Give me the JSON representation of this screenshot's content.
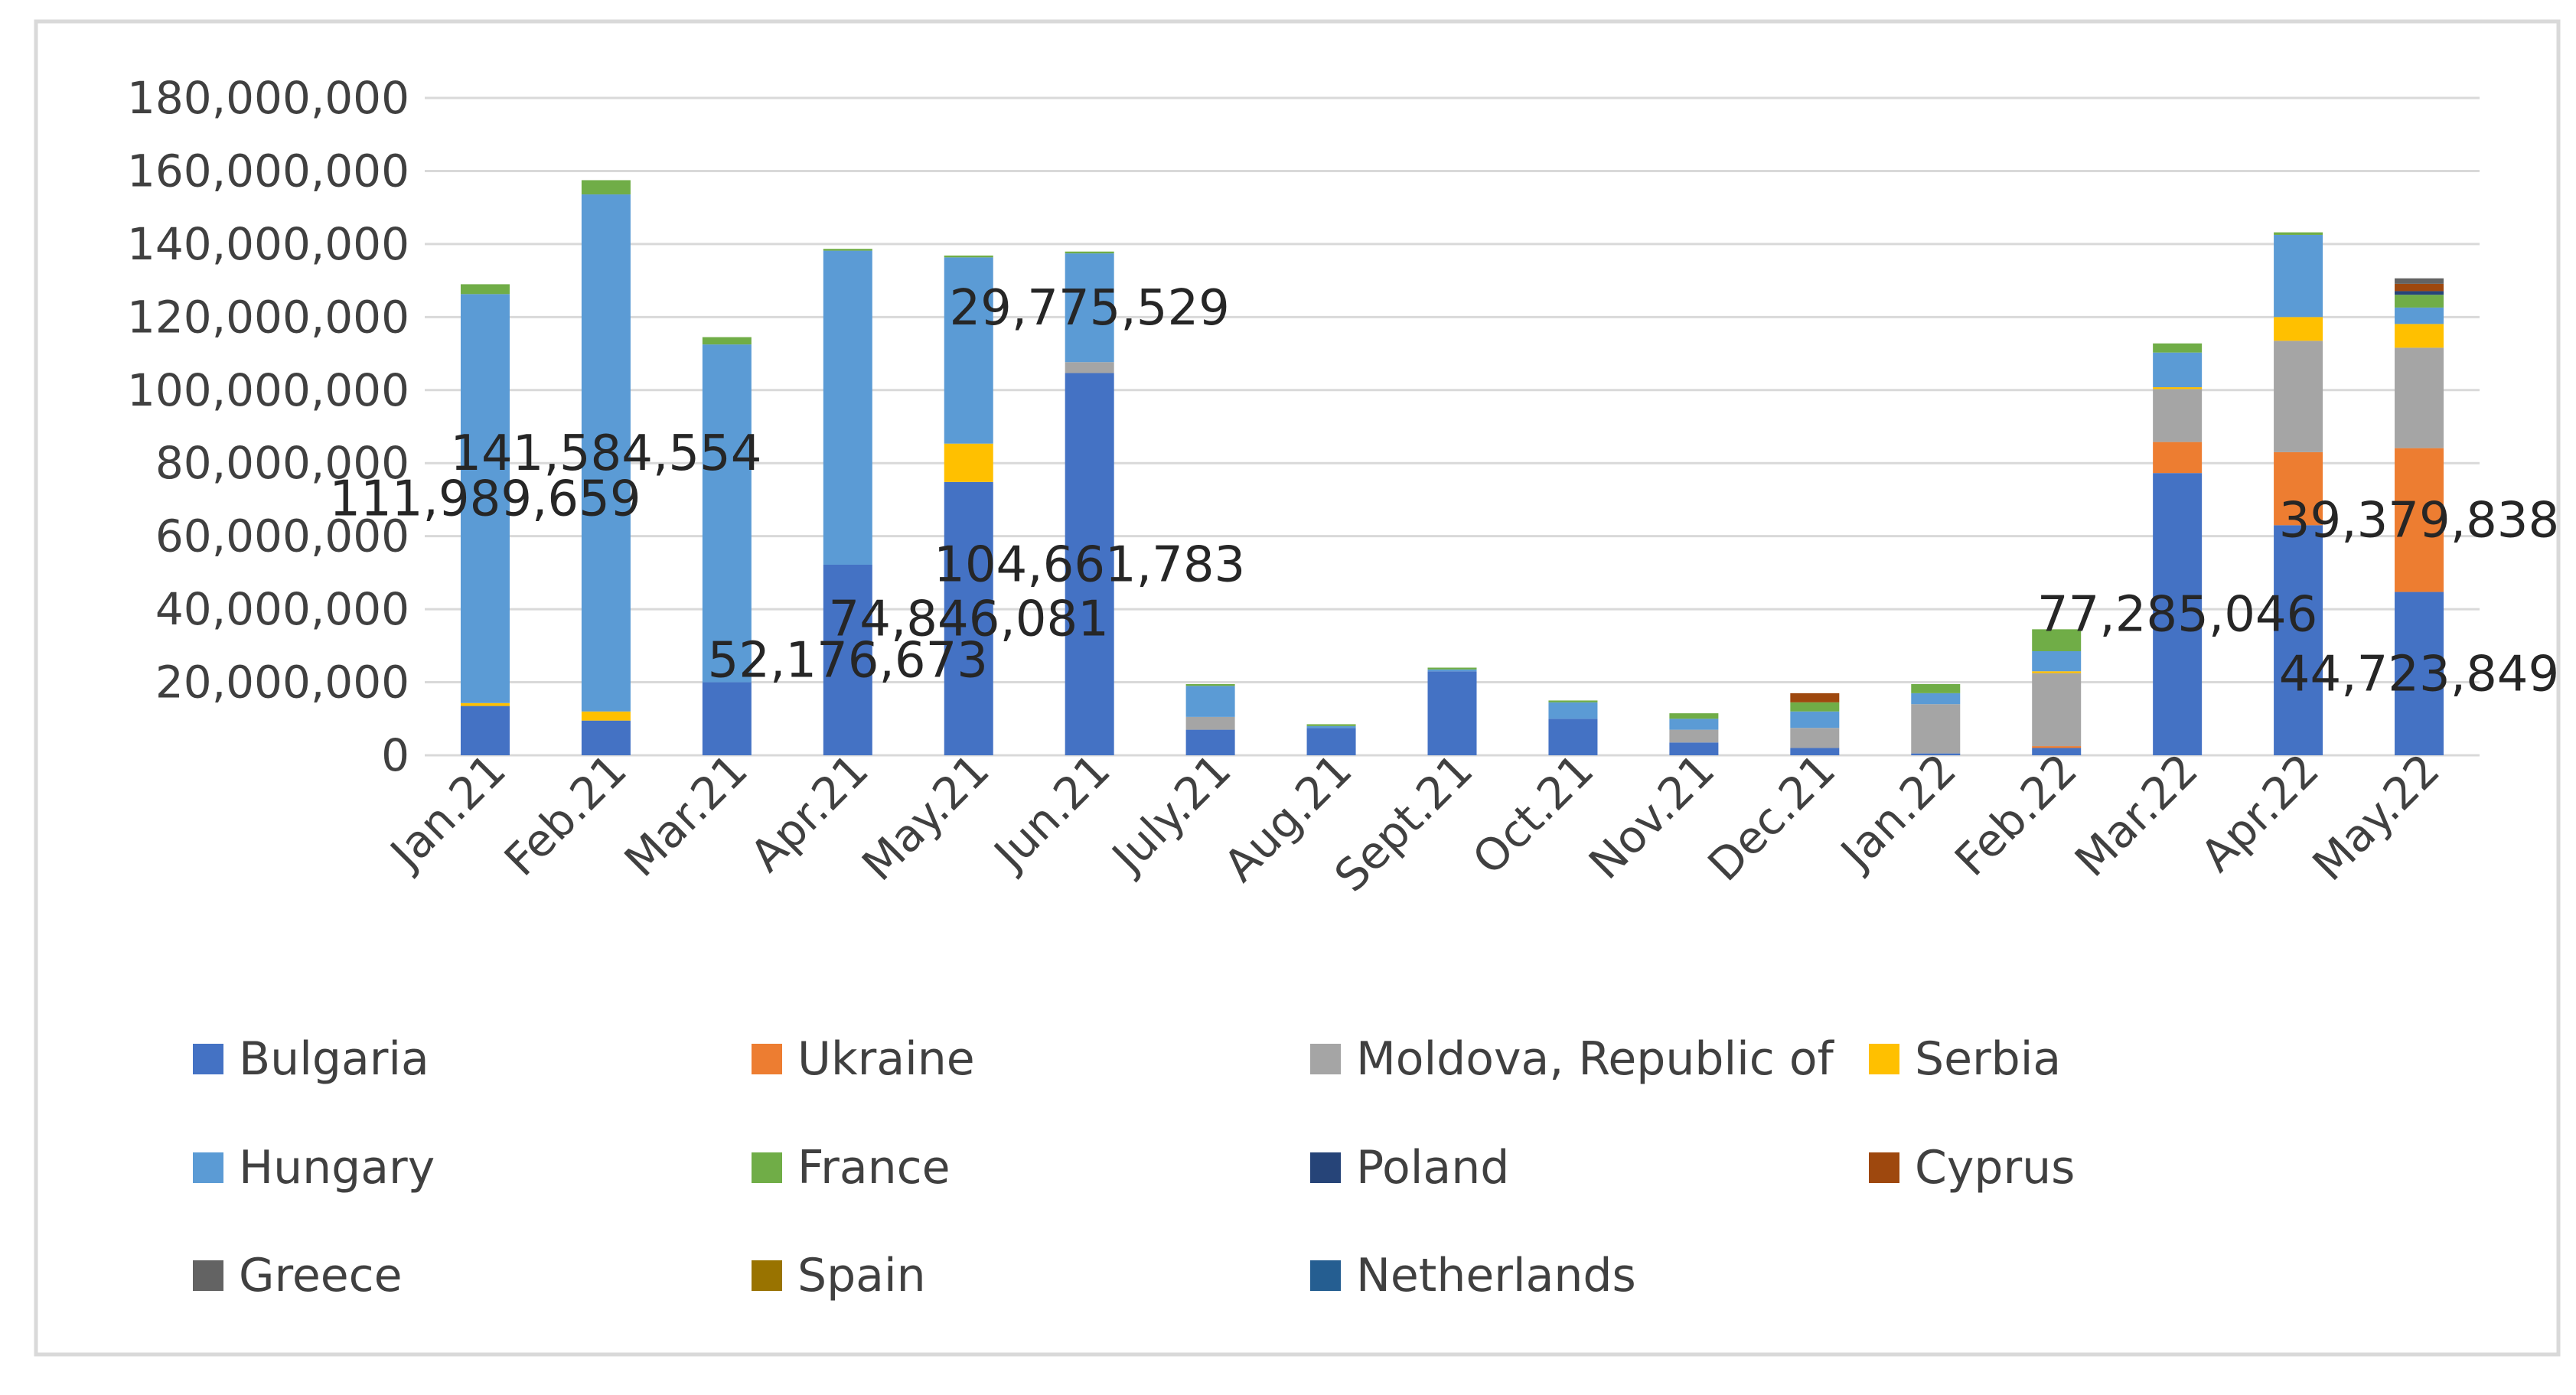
{
  "chart_data": {
    "type": "bar",
    "stacked": true,
    "title": "",
    "xlabel": "",
    "ylabel": "",
    "ylim": [
      0,
      180000000
    ],
    "yticks": [
      0,
      20000000,
      40000000,
      60000000,
      80000000,
      100000000,
      120000000,
      140000000,
      160000000,
      180000000
    ],
    "ytick_labels": [
      "0",
      "20,000,000",
      "40,000,000",
      "60,000,000",
      "80,000,000",
      "100,000,000",
      "120,000,000",
      "140,000,000",
      "160,000,000",
      "180,000,000"
    ],
    "grid": true,
    "legend_position": "bottom",
    "categories": [
      "Jan.21",
      "Feb.21",
      "Mar.21",
      "Apr.21",
      "May.21",
      "Jun.21",
      "July.21",
      "Aug.21",
      "Sept.21",
      "Oct.21",
      "Nov.21",
      "Dec.21",
      "Jan.22",
      "Feb.22",
      "Mar.22",
      "Apr.22",
      "May.22"
    ],
    "series": [
      {
        "name": "Bulgaria",
        "color": "#4472C4",
        "values": [
          13500000,
          9500000,
          20000000,
          52176673,
          74846081,
          104661783,
          7000000,
          7500000,
          23000000,
          10000000,
          3500000,
          2000000,
          500000,
          2000000,
          77285046,
          63000000,
          44723849
        ]
      },
      {
        "name": "Ukraine",
        "color": "#ED7D31",
        "values": [
          0,
          0,
          0,
          0,
          0,
          0,
          0,
          0,
          0,
          0,
          0,
          0,
          0,
          500000,
          8500000,
          20000000,
          39379838
        ]
      },
      {
        "name": "Moldova, Republic of",
        "color": "#A5A5A5",
        "values": [
          0,
          0,
          0,
          0,
          0,
          3000000,
          3500000,
          0,
          0,
          0,
          3500000,
          5500000,
          13500000,
          20000000,
          14500000,
          30500000,
          27500000
        ]
      },
      {
        "name": "Serbia",
        "color": "#FFC000",
        "values": [
          800000,
          2500000,
          0,
          0,
          10500000,
          0,
          0,
          0,
          0,
          0,
          0,
          0,
          0,
          500000,
          500000,
          6500000,
          6500000
        ]
      },
      {
        "name": "Hungary",
        "color": "#5B9BD5",
        "values": [
          111989659,
          141584554,
          92500000,
          86000000,
          51000000,
          29775529,
          8500000,
          500000,
          500000,
          4500000,
          3000000,
          4500000,
          3000000,
          5500000,
          9500000,
          22500000,
          4500000
        ]
      },
      {
        "name": "France",
        "color": "#70AD47",
        "values": [
          2700000,
          3900000,
          2000000,
          500000,
          500000,
          500000,
          500000,
          500000,
          500000,
          500000,
          1500000,
          2500000,
          2500000,
          6000000,
          2500000,
          700000,
          3500000
        ]
      },
      {
        "name": "Poland",
        "color": "#264478",
        "values": [
          0,
          0,
          0,
          0,
          0,
          0,
          0,
          0,
          0,
          0,
          0,
          0,
          0,
          0,
          0,
          0,
          1000000
        ]
      },
      {
        "name": "Cyprus",
        "color": "#9E480E",
        "values": [
          0,
          0,
          0,
          0,
          0,
          0,
          0,
          0,
          0,
          0,
          0,
          2500000,
          0,
          0,
          0,
          0,
          2000000
        ]
      },
      {
        "name": "Greece",
        "color": "#636363",
        "values": [
          0,
          0,
          0,
          0,
          0,
          0,
          0,
          0,
          0,
          0,
          0,
          0,
          0,
          0,
          0,
          0,
          1500000
        ]
      },
      {
        "name": "Spain",
        "color": "#997300",
        "values": [
          0,
          0,
          0,
          0,
          0,
          0,
          0,
          0,
          0,
          0,
          0,
          0,
          0,
          0,
          0,
          0,
          0
        ]
      },
      {
        "name": "Netherlands",
        "color": "#255E91",
        "values": [
          0,
          0,
          0,
          0,
          0,
          0,
          0,
          0,
          0,
          0,
          0,
          0,
          0,
          0,
          0,
          0,
          0
        ]
      }
    ],
    "data_labels": [
      {
        "text": "111,989,659",
        "category": "Jan.21",
        "series": "Hungary"
      },
      {
        "text": "141,584,554",
        "category": "Feb.21",
        "series": "Hungary"
      },
      {
        "text": "52,176,673",
        "category": "Apr.21",
        "series": "Bulgaria"
      },
      {
        "text": "74,846,081",
        "category": "May.21",
        "series": "Bulgaria"
      },
      {
        "text": "29,775,529",
        "category": "Jun.21",
        "series": "Hungary"
      },
      {
        "text": "104,661,783",
        "category": "Jun.21",
        "series": "Bulgaria"
      },
      {
        "text": "77,285,046",
        "category": "Mar.22",
        "series": "Bulgaria"
      },
      {
        "text": "39,379,838",
        "category": "May.22",
        "series": "Ukraine"
      },
      {
        "text": "44,723,849",
        "category": "May.22",
        "series": "Bulgaria"
      }
    ]
  }
}
